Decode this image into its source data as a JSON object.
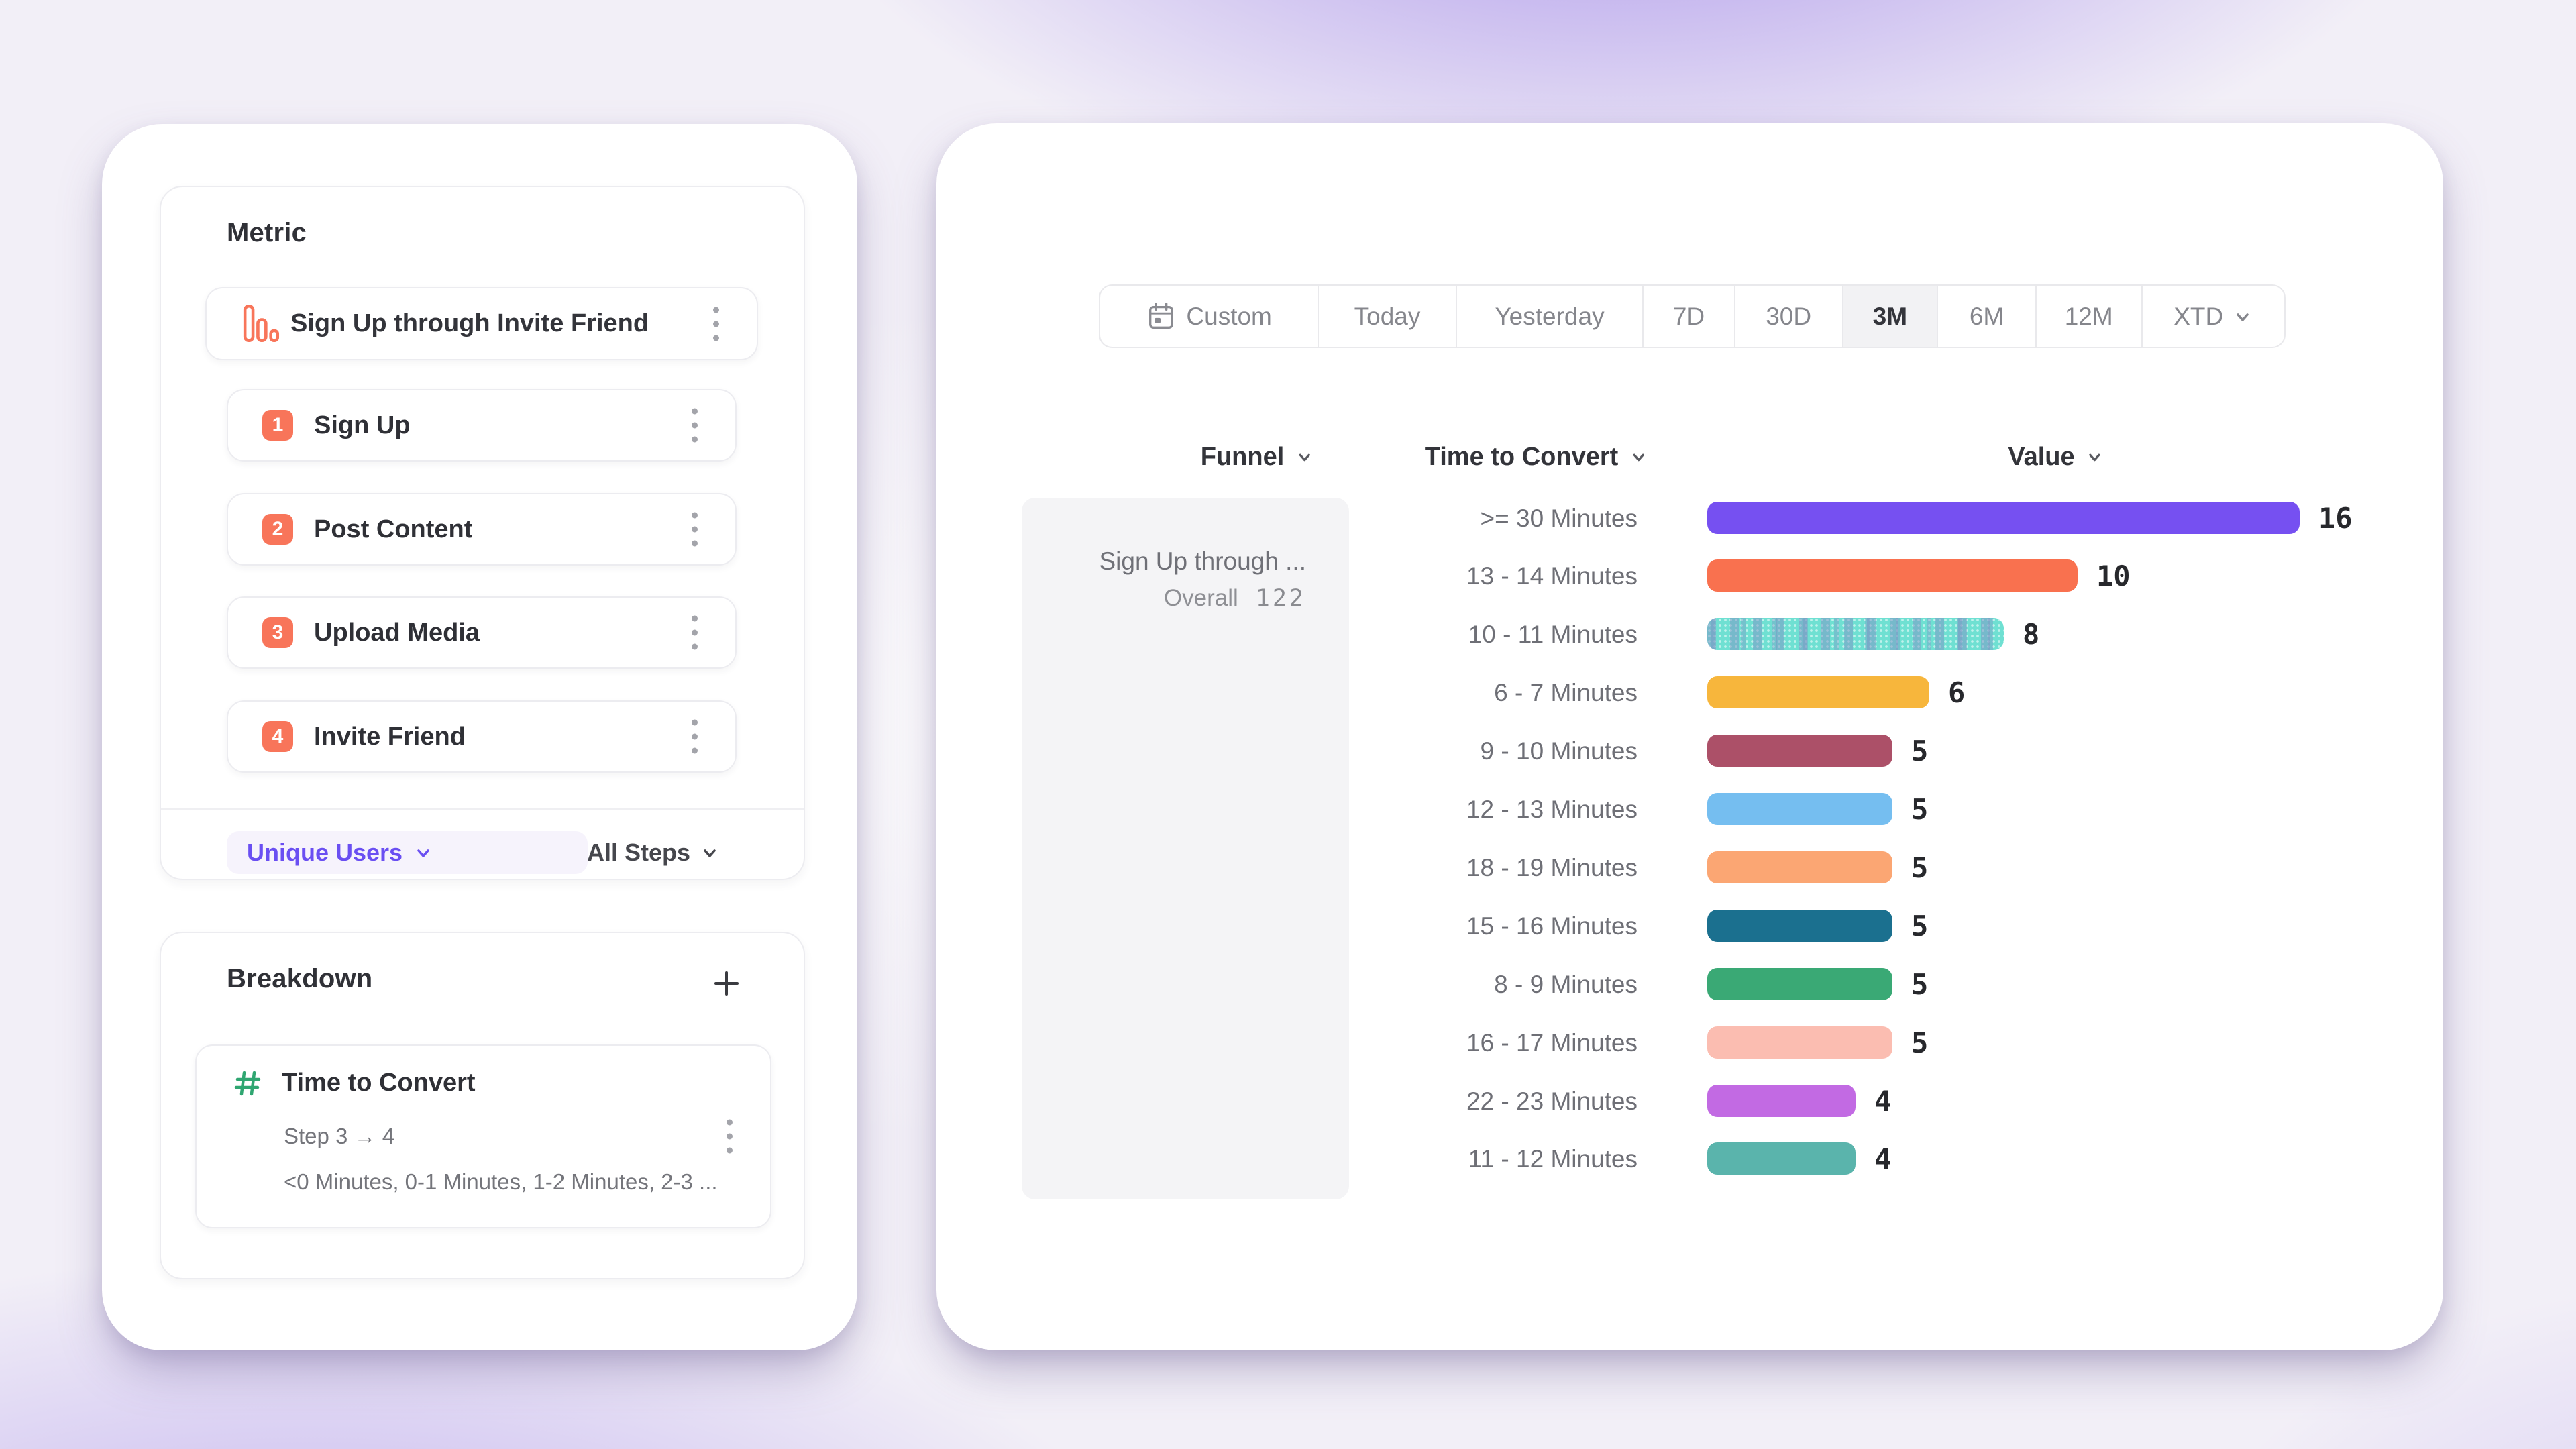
{
  "theme": {
    "accent_purple": "#6A4FF2",
    "coral": "#F8755A",
    "green": "#2FA671",
    "header_text": "#33343A",
    "gray_text": "#6F7077",
    "value_text": "#27282C"
  },
  "left_panel": {
    "metric": {
      "title": "Metric",
      "funnel_name": "Sign Up through Invite Friend",
      "funnel_icon": "bar-chart-icon",
      "steps": [
        {
          "num": "1",
          "label": "Sign Up"
        },
        {
          "num": "2",
          "label": "Post Content"
        },
        {
          "num": "3",
          "label": "Upload Media"
        },
        {
          "num": "4",
          "label": "Invite Friend"
        }
      ],
      "measurement_label": "Unique Users",
      "steps_filter_label": "All Steps"
    },
    "breakdown": {
      "title": "Breakdown",
      "add_icon": "plus-icon",
      "property": {
        "icon": "hash-icon",
        "name": "Time to Convert",
        "step_range": "Step 3 → 4",
        "buckets_preview": "<0 Minutes, 0-1 Minutes, 1-2 Minutes, 2-3 ..."
      }
    }
  },
  "right_panel": {
    "date_range": {
      "options": [
        "Custom",
        "Today",
        "Yesterday",
        "7D",
        "30D",
        "3M",
        "6M",
        "12M",
        "XTD"
      ],
      "selected": "3M",
      "widths": [
        327,
        206,
        279,
        137,
        161,
        142,
        147,
        158,
        212
      ]
    },
    "columns": {
      "funnel": "Funnel",
      "time_to_convert": "Time to Convert",
      "value": "Value"
    },
    "funnel_cell": {
      "name": "Sign Up through ...",
      "overall_label": "Overall",
      "overall_value": "122"
    }
  },
  "chart_data": {
    "type": "bar",
    "orientation": "horizontal",
    "title": "Time to Convert breakdown values",
    "xlabel": "Value",
    "ylabel": "Time to Convert bucket",
    "xlim": [
      0,
      16
    ],
    "grid": false,
    "categories": [
      ">= 30 Minutes",
      "13 - 14 Minutes",
      "10 - 11 Minutes",
      "6 - 7 Minutes",
      "9 - 10 Minutes",
      "12 - 13 Minutes",
      "18 - 19 Minutes",
      "15 - 16 Minutes",
      "8 - 9 Minutes",
      "16 - 17 Minutes",
      "22 - 23 Minutes",
      "11 - 12 Minutes"
    ],
    "values": [
      16,
      10,
      8,
      6,
      5,
      5,
      5,
      5,
      5,
      5,
      4,
      4
    ],
    "colors": [
      "#7650F1",
      "#F9714F",
      "#6FE0D2",
      "#F7B63C",
      "#AC5068",
      "#75BEF0",
      "#FBA673",
      "#1B708F",
      "#3AA975",
      "#FBBDB1",
      "#C26AE3",
      "#5AB4AC"
    ],
    "patterns": [
      null,
      null,
      "hatched",
      null,
      null,
      null,
      null,
      null,
      null,
      null,
      null,
      null
    ],
    "funnel_overall": 122
  }
}
